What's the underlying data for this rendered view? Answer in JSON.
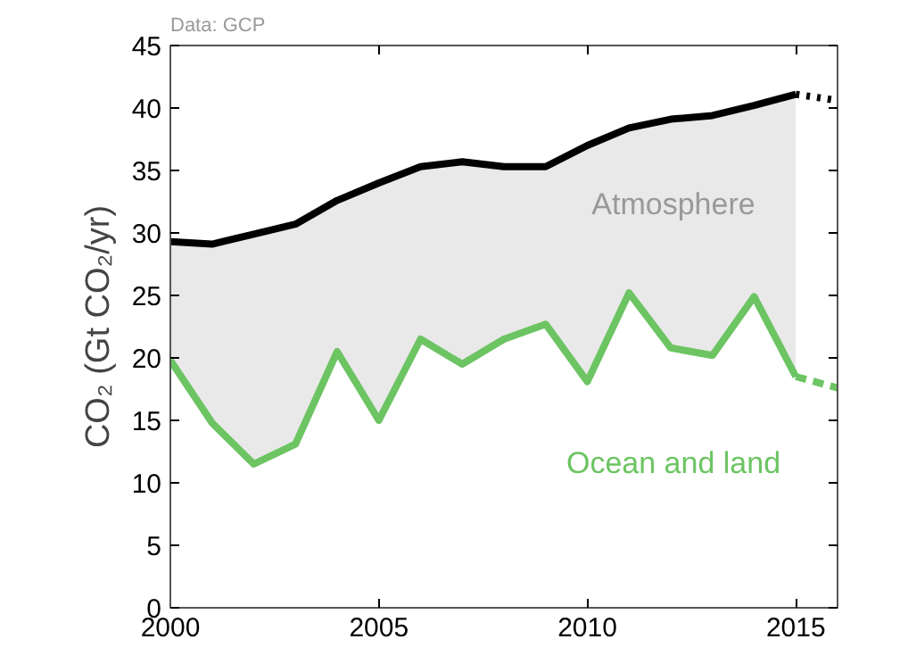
{
  "chart_data": {
    "type": "line",
    "ylabel": "CO₂ (Gt CO₂/yr)",
    "x": [
      2000,
      2001,
      2002,
      2003,
      2004,
      2005,
      2006,
      2007,
      2008,
      2009,
      2010,
      2011,
      2012,
      2013,
      2014,
      2015,
      2016
    ],
    "xlim": [
      2000,
      2016
    ],
    "xticks": [
      2000,
      2005,
      2010,
      2015
    ],
    "ylim": [
      0,
      45
    ],
    "yticks": [
      0,
      5,
      10,
      15,
      20,
      25,
      30,
      35,
      40,
      45
    ],
    "series": [
      {
        "color": "#000000",
        "line_style": "solid",
        "values": [
          29.3,
          29.1,
          29.9,
          30.7,
          32.6,
          34.0,
          35.3,
          35.7,
          35.3,
          35.3,
          37.0,
          38.4,
          39.1,
          39.4,
          40.2,
          41.1,
          null
        ]
      },
      {
        "color": "#6cc462",
        "line_style": "solid",
        "values": [
          19.8,
          14.8,
          11.5,
          13.1,
          20.5,
          15.0,
          21.5,
          19.5,
          21.5,
          22.7,
          18.1,
          25.2,
          20.8,
          20.2,
          24.9,
          18.5,
          null
        ],
        "lower": [
          19.8,
          14.8,
          11.5,
          13.1,
          20.5,
          15.0,
          21.5,
          19.5,
          21.5,
          22.7,
          18.1,
          25.2,
          20.8,
          20.2,
          24.9,
          18.5,
          null
        ],
        "upper": [
          29.3,
          29.1,
          29.9,
          30.7,
          32.6,
          34.0,
          35.3,
          35.7,
          35.3,
          35.3,
          37.0,
          38.4,
          39.1,
          39.4,
          40.2,
          41.1,
          null
        ]
      },
      {
        "color": "#000000",
        "line_style": "dotted",
        "values": [
          null,
          null,
          null,
          null,
          null,
          null,
          null,
          null,
          null,
          null,
          null,
          null,
          null,
          null,
          null,
          41.1,
          40.6
        ]
      },
      {
        "color": "#6cc462",
        "line_style": "dashed",
        "values": [
          null,
          null,
          null,
          null,
          null,
          null,
          null,
          null,
          null,
          null,
          null,
          null,
          null,
          null,
          null,
          18.5,
          17.6
        ]
      }
    ],
    "annotations": [
      "Data: GCP",
      "Atmosphere",
      "Ocean and land"
    ],
    "grid": false
  }
}
